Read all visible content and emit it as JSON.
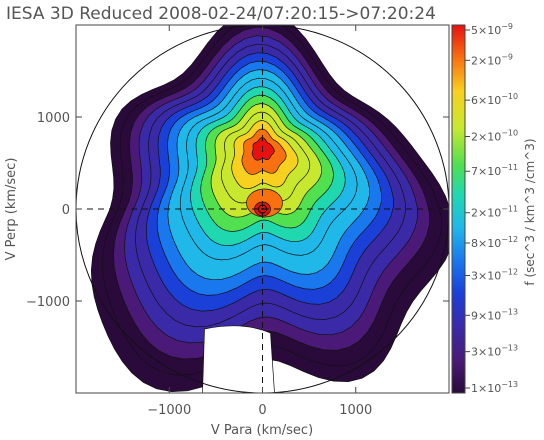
{
  "chart_data": {
    "type": "heatmap",
    "title": "IESA 3D Reduced 2008-02-24/07:20:15->07:20:24",
    "xlabel": "V Para (km/sec)",
    "ylabel": "V Perp (km/sec)",
    "xlim": [
      -2000,
      2000
    ],
    "ylim": [
      -2000,
      2000
    ],
    "x_ticks": [
      -1000,
      0,
      1000
    ],
    "x_tick_labels": [
      "−1000",
      "0",
      "1000"
    ],
    "y_ticks": [
      -1000,
      0,
      1000
    ],
    "y_tick_labels": [
      "−1000",
      "0",
      "1000"
    ],
    "colorbar": {
      "label": "f (sec^3 / km^3 /cm^3)",
      "scale": "log",
      "range": [
        1e-13,
        5e-09
      ],
      "tick_values": [
        1e-13,
        3e-13,
        9e-13,
        3e-12,
        8e-12,
        2e-11,
        7e-11,
        2e-10,
        6e-10,
        2e-09,
        5e-09
      ],
      "tick_labels": [
        {
          "mantissa": "1",
          "exponent": "-13"
        },
        {
          "mantissa": "3",
          "exponent": "-13"
        },
        {
          "mantissa": "9",
          "exponent": "-13"
        },
        {
          "mantissa": "3",
          "exponent": "-12"
        },
        {
          "mantissa": "8",
          "exponent": "-12"
        },
        {
          "mantissa": "2",
          "exponent": "-11"
        },
        {
          "mantissa": "7",
          "exponent": "-11"
        },
        {
          "mantissa": "2",
          "exponent": "-10"
        },
        {
          "mantissa": "6",
          "exponent": "-10"
        },
        {
          "mantissa": "2",
          "exponent": "-9"
        },
        {
          "mantissa": "5",
          "exponent": "-9"
        }
      ]
    },
    "peak": {
      "x": 0,
      "y": 0,
      "value": 5e-09
    },
    "guide_lines": {
      "x": 0,
      "y": 0,
      "style": "dashed"
    },
    "energy_circle_radius": 2000,
    "grid": false
  }
}
